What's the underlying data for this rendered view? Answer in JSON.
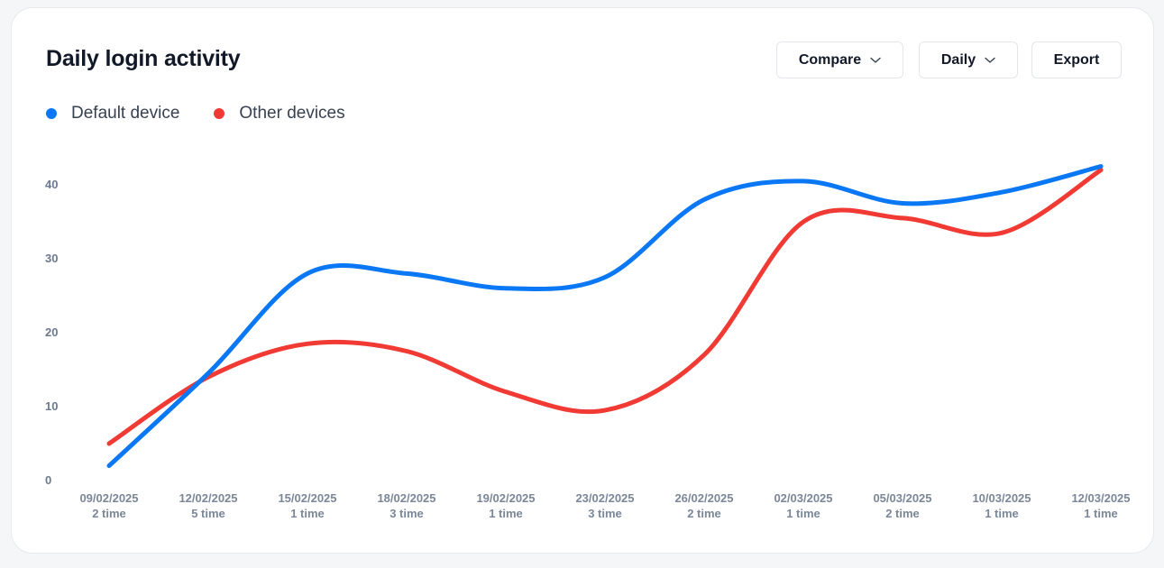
{
  "title": "Daily login activity",
  "controls": {
    "compare_label": "Compare",
    "daily_label": "Daily",
    "export_label": "Export",
    "chevron_icon": "chevron-down-icon"
  },
  "colors": {
    "default_device": "#0a78f5",
    "other_devices": "#f03a33"
  },
  "chart_data": {
    "type": "line",
    "title": "Daily login activity",
    "xlabel": "",
    "ylabel": "",
    "ylim": [
      0,
      40
    ],
    "yticks": [
      "0",
      "10",
      "20",
      "30",
      "40"
    ],
    "categories": [
      "09/02/2025",
      "12/02/2025",
      "15/02/2025",
      "18/02/2025",
      "19/02/2025",
      "23/02/2025",
      "26/02/2025",
      "02/03/2025",
      "05/03/2025",
      "10/03/2025",
      "12/03/2025"
    ],
    "sublabels": [
      "2 time",
      "5 time",
      "1 time",
      "3 time",
      "1 time",
      "3 time",
      "2 time",
      "1 time",
      "2 time",
      "1 time",
      "1 time"
    ],
    "legend_position": "top-left",
    "series": [
      {
        "name": "Default device",
        "color": "#0a78f5",
        "values": [
          2,
          14.5,
          28,
          28,
          26,
          27.5,
          38,
          40.5,
          37.5,
          39,
          42.5
        ]
      },
      {
        "name": "Other devices",
        "color": "#f03a33",
        "values": [
          5,
          14,
          18.5,
          17.5,
          12,
          9.5,
          17,
          35,
          35.5,
          33.5,
          42
        ]
      }
    ]
  }
}
